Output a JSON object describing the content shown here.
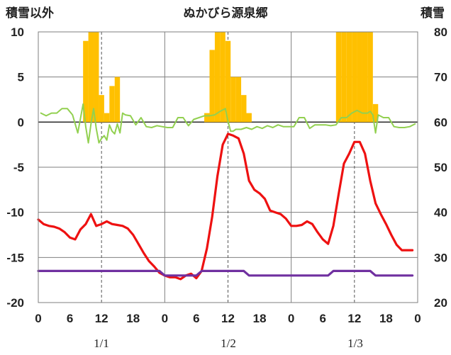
{
  "chart_data": {
    "type": "line",
    "title": "ぬかびら源泉郷",
    "ylabel_left": "積雪以外",
    "ylabel_right": "積雪",
    "ylim_left": [
      -20,
      10
    ],
    "ylim_right": [
      20,
      80
    ],
    "yticks_left": [
      "10",
      "5",
      "0",
      "-5",
      "-10",
      "-15",
      "-20"
    ],
    "yticks_right": [
      "80",
      "70",
      "60",
      "50",
      "40",
      "30",
      "20"
    ],
    "xlim": [
      0,
      72
    ],
    "xticks": [
      "0",
      "6",
      "12",
      "18",
      "0",
      "6",
      "12",
      "18",
      "0",
      "6",
      "12",
      "18",
      "0"
    ],
    "day_labels": [
      "1/1",
      "1/2",
      "1/3"
    ],
    "colors": {
      "precip": "#FFC000",
      "wind": "#92D050",
      "temp": "#EE1111",
      "snow": "#7030A0"
    },
    "series": [
      {
        "key": "precip",
        "kind": "bar",
        "x": [
          9,
          10,
          11,
          12,
          13,
          14,
          15,
          32,
          33,
          34,
          35,
          36,
          37,
          38,
          39,
          40,
          57,
          58,
          59,
          60,
          61,
          62,
          63,
          64
        ],
        "values": [
          9,
          10,
          10,
          3,
          1,
          4,
          5,
          1,
          8,
          10,
          10,
          9,
          5,
          5,
          3,
          1,
          10,
          10,
          10,
          10,
          10,
          10,
          10,
          2
        ]
      },
      {
        "key": "wind",
        "kind": "line",
        "x": [
          0.5,
          1.5,
          2.5,
          3.5,
          4.5,
          5.5,
          6.5,
          7.5,
          8.5,
          9.0,
          9.5,
          10.0,
          10.5,
          11.0,
          11.5,
          12.0,
          12.5,
          13.0,
          13.5,
          14.0,
          14.5,
          15.0,
          15.5,
          16.0,
          16.5,
          17.5,
          18.5,
          19.5,
          20.5,
          21.5,
          22.5,
          23.5,
          24.5,
          25.5,
          26.5,
          27.5,
          28.5,
          29.5,
          30.5,
          31.5,
          32.5,
          33.5,
          34.5,
          35.5,
          36.0,
          36.5,
          37.0,
          37.5,
          38.5,
          39.5,
          40.5,
          41.5,
          42.5,
          43.5,
          44.5,
          45.5,
          46.5,
          47.5,
          48.5,
          49.5,
          50.5,
          51.5,
          52.5,
          53.5,
          54.5,
          55.5,
          56.5,
          57.5,
          58.5,
          59.5,
          60.5,
          61.5,
          62.5,
          63.0,
          63.5,
          64.0,
          64.5,
          65.5,
          66.5,
          67.5,
          68.5,
          69.5,
          70.5,
          71.5
        ],
        "values": [
          1,
          0.7,
          1,
          1,
          1.5,
          1.5,
          0.8,
          -1.2,
          2,
          -0.5,
          -2.3,
          -0.2,
          1.5,
          -0.7,
          -2.3,
          -1.8,
          -1.5,
          -2.0,
          -0.3,
          -1.0,
          -1.3,
          -0.2,
          -1.2,
          1.0,
          0.8,
          0.7,
          -0.3,
          0.5,
          -0.5,
          -0.6,
          -0.4,
          -0.5,
          -0.6,
          -0.6,
          0.5,
          0.5,
          -0.4,
          0.3,
          0.5,
          0.7,
          0.7,
          0.8,
          1.2,
          1.5,
          0.1,
          -1.0,
          -1.0,
          -0.8,
          -0.8,
          -0.6,
          -0.8,
          -0.5,
          -0.7,
          -0.4,
          -0.6,
          -0.3,
          -0.5,
          -0.5,
          -0.5,
          0.5,
          0.5,
          -0.7,
          -0.3,
          -0.3,
          -0.3,
          -0.4,
          -0.3,
          0.5,
          0.5,
          1.0,
          1.3,
          1.0,
          1.0,
          1.2,
          0.8,
          -1.2,
          0.8,
          0.5,
          0.5,
          -0.5,
          -0.6,
          -0.6,
          -0.5,
          -0.2
        ]
      },
      {
        "key": "temp",
        "kind": "line",
        "x": [
          0,
          1,
          2,
          3,
          4,
          5,
          6,
          7,
          8,
          9,
          10,
          11,
          11.5,
          12,
          13,
          14,
          15,
          16,
          17,
          18,
          19,
          20,
          21,
          22,
          23,
          24,
          25,
          26,
          27,
          28,
          29,
          30,
          31,
          32,
          33,
          34,
          35,
          36,
          37,
          38,
          39,
          40,
          41,
          42,
          43,
          44,
          45,
          46,
          47,
          48,
          49,
          50,
          51,
          52,
          53,
          54,
          55,
          56,
          57,
          58,
          59,
          60,
          61,
          62,
          63,
          64,
          65,
          66,
          67,
          68,
          69,
          70,
          71
        ],
        "values": [
          -10.8,
          -11.3,
          -11.5,
          -11.6,
          -11.8,
          -12.2,
          -12.8,
          -13,
          -11.9,
          -11.3,
          -10.2,
          -11.5,
          -11.4,
          -11.3,
          -11,
          -11.3,
          -11.4,
          -11.5,
          -11.8,
          -12.5,
          -13.5,
          -14.5,
          -15.4,
          -16,
          -16.7,
          -17,
          -17.2,
          -17.2,
          -17.4,
          -17,
          -16.8,
          -17.3,
          -16.5,
          -14,
          -10.5,
          -6,
          -2.5,
          -1.3,
          -1.5,
          -1.8,
          -3.5,
          -6.5,
          -7.5,
          -7.9,
          -8.5,
          -9.8,
          -10,
          -10.2,
          -10.7,
          -11.5,
          -11.5,
          -11.4,
          -11,
          -11.3,
          -12.2,
          -13,
          -13.5,
          -11.5,
          -8,
          -4.6,
          -3.5,
          -2.2,
          -2.2,
          -3.5,
          -6.5,
          -9,
          -10.2,
          -11.3,
          -12.5,
          -13.6,
          -14.2,
          -14.2,
          -14.2
        ]
      },
      {
        "key": "snow",
        "kind": "line",
        "axis": "right",
        "x": [
          0,
          9,
          16,
          17,
          22,
          23,
          24,
          29,
          30,
          31,
          32,
          33,
          35,
          36,
          37,
          38,
          39,
          40,
          43,
          45,
          46,
          47,
          48,
          55,
          56,
          58,
          61,
          63,
          64,
          65,
          68,
          71
        ],
        "values": [
          27,
          27,
          27,
          27,
          27,
          27,
          26,
          26,
          26,
          27,
          27,
          27,
          27,
          27,
          27,
          27,
          27,
          26,
          26,
          26,
          26,
          26,
          26,
          26,
          27,
          27,
          27,
          27,
          26,
          26,
          26,
          26
        ]
      }
    ],
    "grid": "vertical-and-horizontal"
  }
}
